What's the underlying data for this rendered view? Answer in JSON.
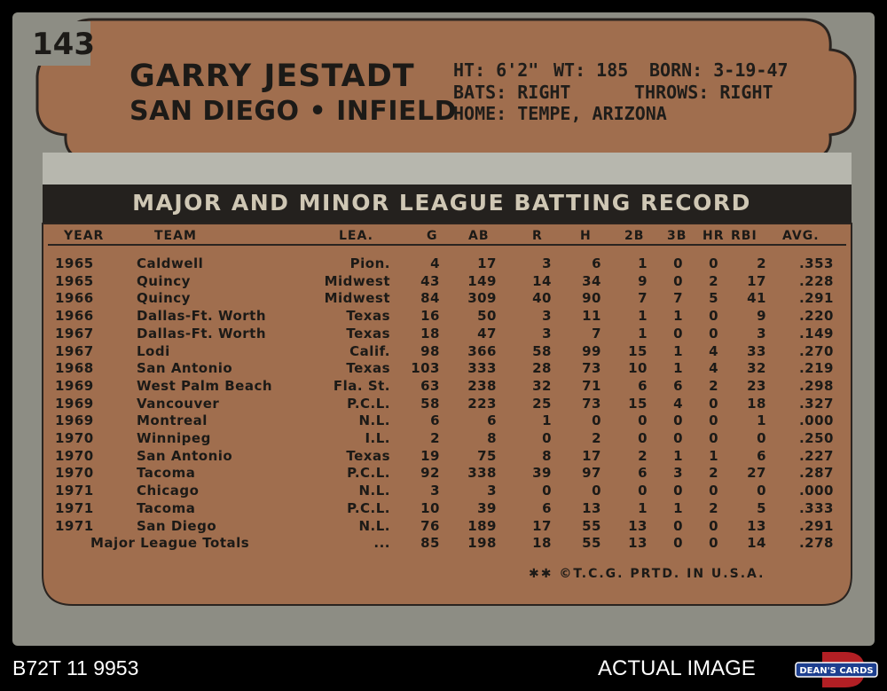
{
  "card": {
    "number": "143",
    "player_name": "GARRY JESTADT",
    "team_position": "SAN DIEGO • INFIELD",
    "bio": {
      "height": "HT: 6'2\"",
      "weight": "WT: 185",
      "born": "BORN: 3-19-47",
      "bats": "BATS: RIGHT",
      "throws": "THROWS: RIGHT",
      "home": "HOME: TEMPE, ARIZONA"
    },
    "record_title": "MAJOR AND MINOR LEAGUE BATTING RECORD",
    "columns": [
      "YEAR",
      "TEAM",
      "LEA.",
      "G",
      "AB",
      "R",
      "H",
      "2B",
      "3B",
      "HR",
      "RBI",
      "AVG."
    ],
    "rows": [
      {
        "year": "1965",
        "team": "Caldwell",
        "lea": "Pion.",
        "g": "4",
        "ab": "17",
        "r": "3",
        "h": "6",
        "b2": "1",
        "b3": "0",
        "hr": "0",
        "rbi": "2",
        "avg": ".353"
      },
      {
        "year": "1965",
        "team": "Quincy",
        "lea": "Midwest",
        "g": "43",
        "ab": "149",
        "r": "14",
        "h": "34",
        "b2": "9",
        "b3": "0",
        "hr": "2",
        "rbi": "17",
        "avg": ".228"
      },
      {
        "year": "1966",
        "team": "Quincy",
        "lea": "Midwest",
        "g": "84",
        "ab": "309",
        "r": "40",
        "h": "90",
        "b2": "7",
        "b3": "7",
        "hr": "5",
        "rbi": "41",
        "avg": ".291"
      },
      {
        "year": "1966",
        "team": "Dallas-Ft. Worth",
        "lea": "Texas",
        "g": "16",
        "ab": "50",
        "r": "3",
        "h": "11",
        "b2": "1",
        "b3": "1",
        "hr": "0",
        "rbi": "9",
        "avg": ".220"
      },
      {
        "year": "1967",
        "team": "Dallas-Ft. Worth",
        "lea": "Texas",
        "g": "18",
        "ab": "47",
        "r": "3",
        "h": "7",
        "b2": "1",
        "b3": "0",
        "hr": "0",
        "rbi": "3",
        "avg": ".149"
      },
      {
        "year": "1967",
        "team": "Lodi",
        "lea": "Calif.",
        "g": "98",
        "ab": "366",
        "r": "58",
        "h": "99",
        "b2": "15",
        "b3": "1",
        "hr": "4",
        "rbi": "33",
        "avg": ".270"
      },
      {
        "year": "1968",
        "team": "San Antonio",
        "lea": "Texas",
        "g": "103",
        "ab": "333",
        "r": "28",
        "h": "73",
        "b2": "10",
        "b3": "1",
        "hr": "4",
        "rbi": "32",
        "avg": ".219"
      },
      {
        "year": "1969",
        "team": "West Palm Beach",
        "lea": "Fla. St.",
        "g": "63",
        "ab": "238",
        "r": "32",
        "h": "71",
        "b2": "6",
        "b3": "6",
        "hr": "2",
        "rbi": "23",
        "avg": ".298"
      },
      {
        "year": "1969",
        "team": "Vancouver",
        "lea": "P.C.L.",
        "g": "58",
        "ab": "223",
        "r": "25",
        "h": "73",
        "b2": "15",
        "b3": "4",
        "hr": "0",
        "rbi": "18",
        "avg": ".327"
      },
      {
        "year": "1969",
        "team": "Montreal",
        "lea": "N.L.",
        "g": "6",
        "ab": "6",
        "r": "1",
        "h": "0",
        "b2": "0",
        "b3": "0",
        "hr": "0",
        "rbi": "1",
        "avg": ".000"
      },
      {
        "year": "1970",
        "team": "Winnipeg",
        "lea": "I.L.",
        "g": "2",
        "ab": "8",
        "r": "0",
        "h": "2",
        "b2": "0",
        "b3": "0",
        "hr": "0",
        "rbi": "0",
        "avg": ".250"
      },
      {
        "year": "1970",
        "team": "San Antonio",
        "lea": "Texas",
        "g": "19",
        "ab": "75",
        "r": "8",
        "h": "17",
        "b2": "2",
        "b3": "1",
        "hr": "1",
        "rbi": "6",
        "avg": ".227"
      },
      {
        "year": "1970",
        "team": "Tacoma",
        "lea": "P.C.L.",
        "g": "92",
        "ab": "338",
        "r": "39",
        "h": "97",
        "b2": "6",
        "b3": "3",
        "hr": "2",
        "rbi": "27",
        "avg": ".287"
      },
      {
        "year": "1971",
        "team": "Chicago",
        "lea": "N.L.",
        "g": "3",
        "ab": "3",
        "r": "0",
        "h": "0",
        "b2": "0",
        "b3": "0",
        "hr": "0",
        "rbi": "0",
        "avg": ".000"
      },
      {
        "year": "1971",
        "team": "Tacoma",
        "lea": "P.C.L.",
        "g": "10",
        "ab": "39",
        "r": "6",
        "h": "13",
        "b2": "1",
        "b3": "1",
        "hr": "2",
        "rbi": "5",
        "avg": ".333"
      },
      {
        "year": "1971",
        "team": "San Diego",
        "lea": "N.L.",
        "g": "76",
        "ab": "189",
        "r": "17",
        "h": "55",
        "b2": "13",
        "b3": "0",
        "hr": "0",
        "rbi": "13",
        "avg": ".291"
      }
    ],
    "totals": {
      "label": "Major League Totals",
      "lea": "...",
      "g": "85",
      "ab": "198",
      "r": "18",
      "h": "55",
      "b2": "13",
      "b3": "0",
      "hr": "0",
      "rbi": "14",
      "avg": ".278"
    },
    "copyright": "✱✱ ©T.C.G. PRTD. IN U.S.A."
  },
  "caption": {
    "cert_number": "B72T 11 9953",
    "actual_image": "ACTUAL IMAGE",
    "logo_text": "DEAN'S CARDS"
  },
  "colors": {
    "card_gray": "#8d8d84",
    "card_brown": "#a06e4e",
    "band_dark": "#24211e",
    "ink": "#1c1a17"
  }
}
